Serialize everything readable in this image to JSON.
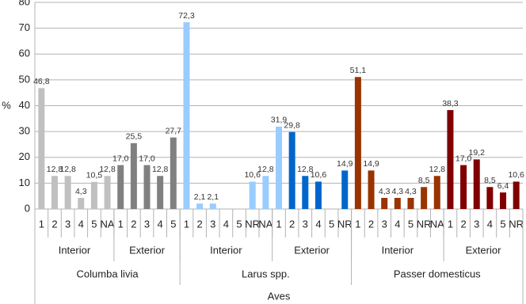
{
  "chart_data": {
    "type": "bar",
    "y_label": "%",
    "x_label": "Aves",
    "ylim": [
      0,
      80
    ],
    "yticks": [
      0,
      10,
      20,
      30,
      40,
      50,
      60,
      70,
      80
    ],
    "grid": true,
    "groups": [
      {
        "name": "Columba livia",
        "subgroups": [
          {
            "name": "Interior",
            "color": "#c0c0c0",
            "categories": [
              "1",
              "2",
              "3",
              "4",
              "5",
              "NA"
            ],
            "values": [
              46.8,
              12.8,
              12.8,
              4.3,
              10.5,
              12.8
            ],
            "value_labels": [
              "46,8",
              "12,8",
              "12,8",
              "4,3",
              "10,5",
              "12,8"
            ]
          },
          {
            "name": "Exterior",
            "color": "#808080",
            "categories": [
              "1",
              "2",
              "3",
              "4",
              "5"
            ],
            "values": [
              17.0,
              25.5,
              17.0,
              12.8,
              27.7
            ],
            "value_labels": [
              "17,0",
              "25,5",
              "17,0",
              "12,8",
              "27,7"
            ]
          }
        ]
      },
      {
        "name": "Larus spp.",
        "subgroups": [
          {
            "name": "Interior",
            "color": "#99ccff",
            "categories": [
              "1",
              "2",
              "3",
              "4",
              "5",
              "NR",
              "NA"
            ],
            "values": [
              72.3,
              2.1,
              2.1,
              null,
              null,
              10.6,
              12.8
            ],
            "value_labels": [
              "72,3",
              "2,1",
              "2,1",
              null,
              null,
              "10,6",
              "12,8"
            ]
          },
          {
            "name": "Exterior",
            "color": "#0066cc",
            "colors": [
              "#99ccff",
              "#0066cc",
              "#0066cc",
              "#0066cc",
              "#0066cc",
              "#0066cc"
            ],
            "categories": [
              "1",
              "2",
              "3",
              "4",
              "5",
              "NR"
            ],
            "values": [
              31.9,
              29.8,
              12.8,
              10.6,
              null,
              14.9
            ],
            "value_labels": [
              "31,9",
              "29,8",
              "12,8",
              "10,6",
              null,
              "14,9"
            ]
          }
        ]
      },
      {
        "name": "Passer domesticus",
        "subgroups": [
          {
            "name": "Interior",
            "color": "#993300",
            "categories": [
              "1",
              "2",
              "3",
              "4",
              "5",
              "NR",
              "NA"
            ],
            "values": [
              51.1,
              14.9,
              4.3,
              4.3,
              4.3,
              8.5,
              12.8
            ],
            "value_labels": [
              "51,1",
              "14,9",
              "4,3",
              "4,3",
              "4,3",
              "8,5",
              "12,8"
            ]
          },
          {
            "name": "Exterior",
            "color": "#800000",
            "categories": [
              "1",
              "2",
              "3",
              "4",
              "5",
              "NR"
            ],
            "values": [
              38.3,
              17.0,
              19.2,
              8.5,
              6.4,
              10.6
            ],
            "value_labels": [
              "38,3",
              "17,0",
              "19,2",
              "8,5",
              "6,4",
              "10,6"
            ]
          }
        ]
      }
    ]
  }
}
